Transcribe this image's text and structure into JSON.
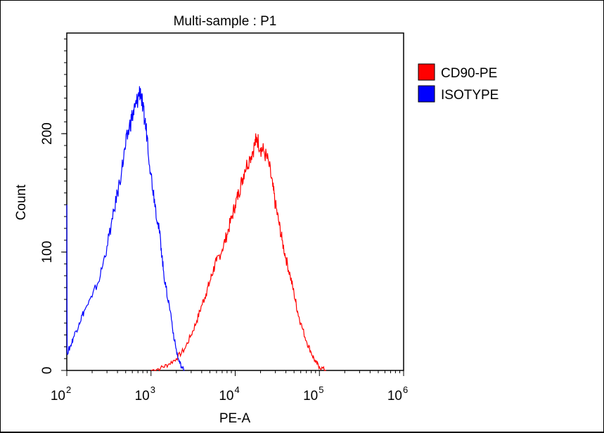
{
  "chart_data": {
    "type": "line",
    "title": "Multi-sample : P1",
    "xlabel": "PE-A",
    "ylabel": "Count",
    "x_scale": "log",
    "xlim": [
      100,
      1000000
    ],
    "ylim": [
      0,
      285
    ],
    "x_ticks": [
      {
        "base": "10",
        "exp": "2",
        "value": 100
      },
      {
        "base": "10",
        "exp": "3",
        "value": 1000
      },
      {
        "base": "10",
        "exp": "4",
        "value": 10000
      },
      {
        "base": "10",
        "exp": "5",
        "value": 100000
      },
      {
        "base": "10",
        "exp": "6",
        "value": 1000000
      }
    ],
    "y_ticks": [
      {
        "label": "0",
        "value": 0
      },
      {
        "label": "100",
        "value": 100
      },
      {
        "label": "200",
        "value": 200
      }
    ],
    "legend_position": "top-right",
    "series": [
      {
        "name": "CD90-PE",
        "color": "#ff0000",
        "points": [
          [
            1000,
            0
          ],
          [
            1300,
            2
          ],
          [
            1600,
            5
          ],
          [
            2000,
            10
          ],
          [
            2500,
            18
          ],
          [
            3000,
            30
          ],
          [
            3500,
            42
          ],
          [
            4000,
            55
          ],
          [
            4500,
            65
          ],
          [
            5000,
            75
          ],
          [
            5500,
            85
          ],
          [
            6000,
            92
          ],
          [
            7000,
            102
          ],
          [
            8000,
            115
          ],
          [
            9000,
            128
          ],
          [
            10000,
            140
          ],
          [
            11000,
            150
          ],
          [
            12000,
            160
          ],
          [
            13000,
            170
          ],
          [
            15000,
            180
          ],
          [
            17000,
            190
          ],
          [
            18000,
            197
          ],
          [
            20000,
            188
          ],
          [
            22000,
            185
          ],
          [
            25000,
            175
          ],
          [
            28000,
            155
          ],
          [
            30000,
            140
          ],
          [
            33000,
            125
          ],
          [
            36000,
            110
          ],
          [
            40000,
            95
          ],
          [
            45000,
            80
          ],
          [
            50000,
            65
          ],
          [
            55000,
            50
          ],
          [
            60000,
            40
          ],
          [
            70000,
            25
          ],
          [
            80000,
            15
          ],
          [
            90000,
            7
          ],
          [
            100000,
            3
          ],
          [
            120000,
            0
          ]
        ]
      },
      {
        "name": "ISOTYPE",
        "color": "#0000ff",
        "points": [
          [
            100,
            140
          ],
          [
            101,
            15
          ],
          [
            110,
            20
          ],
          [
            120,
            28
          ],
          [
            140,
            40
          ],
          [
            160,
            50
          ],
          [
            200,
            62
          ],
          [
            250,
            80
          ],
          [
            300,
            105
          ],
          [
            350,
            128
          ],
          [
            400,
            150
          ],
          [
            450,
            170
          ],
          [
            500,
            190
          ],
          [
            550,
            205
          ],
          [
            600,
            215
          ],
          [
            650,
            222
          ],
          [
            700,
            230
          ],
          [
            750,
            238
          ],
          [
            800,
            220
          ],
          [
            850,
            210
          ],
          [
            900,
            198
          ],
          [
            1000,
            165
          ],
          [
            1100,
            145
          ],
          [
            1200,
            125
          ],
          [
            1300,
            110
          ],
          [
            1400,
            85
          ],
          [
            1500,
            70
          ],
          [
            1700,
            50
          ],
          [
            1900,
            25
          ],
          [
            2100,
            10
          ],
          [
            2300,
            3
          ],
          [
            2500,
            0
          ]
        ]
      }
    ]
  }
}
